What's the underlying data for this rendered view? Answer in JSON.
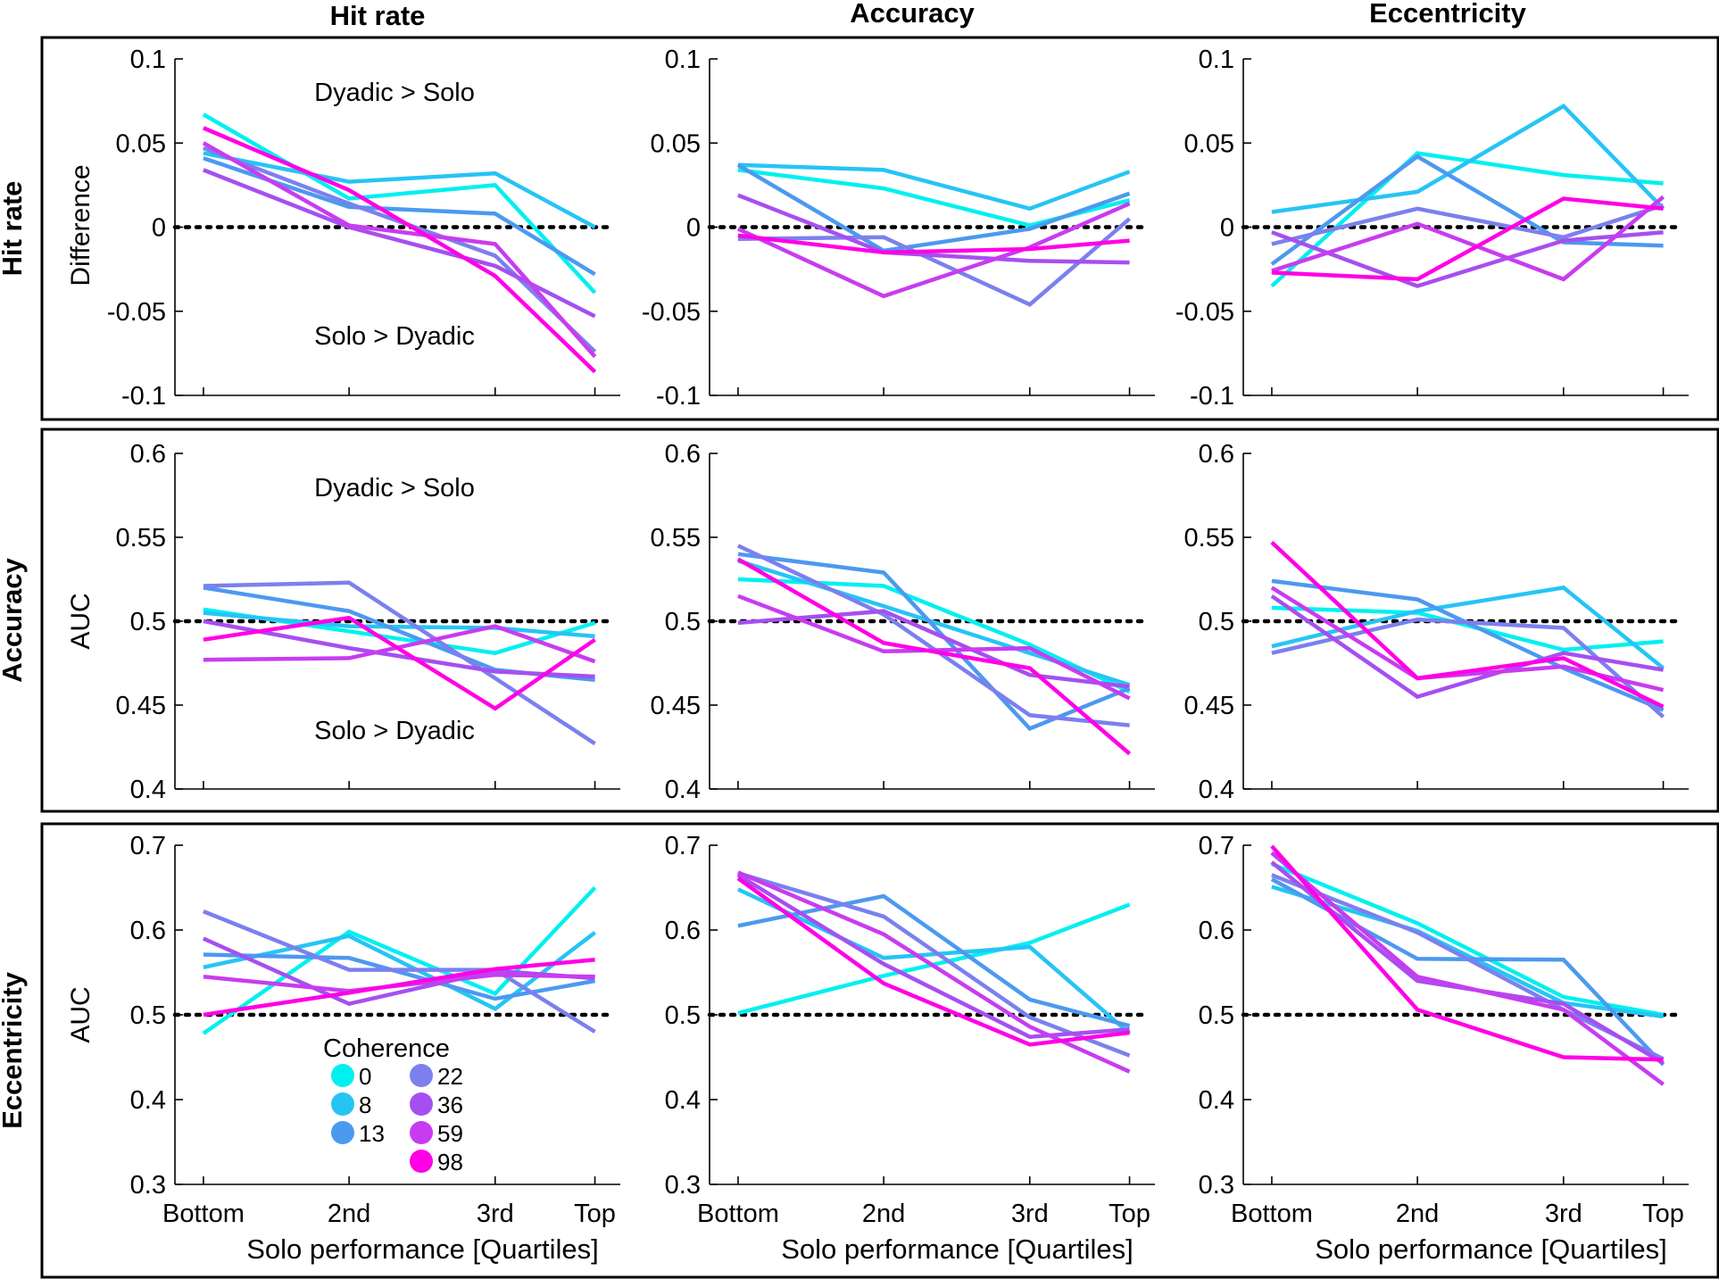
{
  "figure": {
    "column_titles": [
      "Hit rate",
      "Accuracy",
      "Eccentricity"
    ],
    "row_titles": [
      "Hit rate",
      "Accuracy",
      "Eccentricity"
    ]
  },
  "legend": {
    "title": "Coherence",
    "items": [
      {
        "label": "0",
        "color": "#00f0f0"
      },
      {
        "label": "8",
        "color": "#26c4f5"
      },
      {
        "label": "13",
        "color": "#4c99f0"
      },
      {
        "label": "22",
        "color": "#7b80ee"
      },
      {
        "label": "36",
        "color": "#a64ff0"
      },
      {
        "label": "59",
        "color": "#c83cf0"
      },
      {
        "label": "98",
        "color": "#ff00e6"
      }
    ]
  },
  "chart_data": [
    {
      "type": "line",
      "row": 0,
      "col": 0,
      "categories": [
        "Bottom",
        "2nd",
        "3rd",
        "Top"
      ],
      "ylabel": "Difference",
      "xlabel": "",
      "ylim": [
        -0.1,
        0.1
      ],
      "yticks": [
        "0.1",
        "0.05",
        "0",
        "-0.05",
        "-0.1"
      ],
      "reference": 0,
      "annotations": [
        "Dyadic > Solo",
        "Solo > Dyadic"
      ],
      "series": [
        {
          "values": [
            0.067,
            0.017,
            0.025,
            -0.039
          ]
        },
        {
          "values": [
            0.044,
            0.027,
            0.032,
            0.0
          ]
        },
        {
          "values": [
            0.041,
            0.012,
            0.008,
            -0.028
          ]
        },
        {
          "values": [
            0.047,
            0.014,
            -0.017,
            -0.074
          ]
        },
        {
          "values": [
            0.034,
            0.0,
            -0.023,
            -0.053
          ]
        },
        {
          "values": [
            0.05,
            0.001,
            -0.01,
            -0.077
          ]
        },
        {
          "values": [
            0.059,
            0.022,
            -0.029,
            -0.086
          ]
        }
      ]
    },
    {
      "type": "line",
      "row": 0,
      "col": 1,
      "categories": [
        "Bottom",
        "2nd",
        "3rd",
        "Top"
      ],
      "ylabel": "",
      "xlabel": "",
      "ylim": [
        -0.1,
        0.1
      ],
      "yticks": [
        "0.1",
        "0.05",
        "0",
        "-0.05",
        "-0.1"
      ],
      "reference": 0,
      "series": [
        {
          "values": [
            0.034,
            0.023,
            0.001,
            0.016
          ]
        },
        {
          "values": [
            0.037,
            0.034,
            0.011,
            0.033
          ]
        },
        {
          "values": [
            0.037,
            -0.014,
            -0.001,
            0.02
          ]
        },
        {
          "values": [
            -0.007,
            -0.006,
            -0.046,
            0.005
          ]
        },
        {
          "values": [
            0.019,
            -0.015,
            -0.02,
            -0.021
          ]
        },
        {
          "values": [
            -0.001,
            -0.041,
            -0.012,
            0.014
          ]
        },
        {
          "values": [
            -0.005,
            -0.015,
            -0.013,
            -0.008
          ]
        }
      ]
    },
    {
      "type": "line",
      "row": 0,
      "col": 2,
      "categories": [
        "Bottom",
        "2nd",
        "3rd",
        "Top"
      ],
      "ylabel": "",
      "xlabel": "",
      "ylim": [
        -0.1,
        0.1
      ],
      "yticks": [
        "0.1",
        "0.05",
        "0",
        "-0.05",
        "-0.1"
      ],
      "reference": 0,
      "series": [
        {
          "values": [
            -0.035,
            0.044,
            0.031,
            0.026
          ]
        },
        {
          "values": [
            0.009,
            0.021,
            0.072,
            0.011
          ]
        },
        {
          "values": [
            -0.022,
            0.042,
            -0.009,
            -0.011
          ]
        },
        {
          "values": [
            -0.01,
            0.011,
            -0.006,
            0.013
          ]
        },
        {
          "values": [
            -0.003,
            -0.035,
            -0.008,
            -0.003
          ]
        },
        {
          "values": [
            -0.026,
            0.002,
            -0.031,
            0.018
          ]
        },
        {
          "values": [
            -0.027,
            -0.031,
            0.017,
            0.011
          ]
        }
      ]
    },
    {
      "type": "line",
      "row": 1,
      "col": 0,
      "categories": [
        "Bottom",
        "2nd",
        "3rd",
        "Top"
      ],
      "ylabel": "AUC",
      "xlabel": "",
      "ylim": [
        0.4,
        0.6
      ],
      "yticks": [
        "0.6",
        "0.55",
        "0.5",
        "0.45",
        "0.4"
      ],
      "reference": 0.5,
      "annotations": [
        "Dyadic > Solo",
        "Solo > Dyadic"
      ],
      "series": [
        {
          "values": [
            0.507,
            0.494,
            0.481,
            0.499
          ]
        },
        {
          "values": [
            0.505,
            0.497,
            0.496,
            0.491
          ]
        },
        {
          "values": [
            0.52,
            0.506,
            0.471,
            0.465
          ]
        },
        {
          "values": [
            0.521,
            0.523,
            0.466,
            0.427
          ]
        },
        {
          "values": [
            0.5,
            0.484,
            0.47,
            0.467
          ]
        },
        {
          "values": [
            0.477,
            0.478,
            0.497,
            0.476
          ]
        },
        {
          "values": [
            0.489,
            0.502,
            0.448,
            0.489
          ]
        }
      ]
    },
    {
      "type": "line",
      "row": 1,
      "col": 1,
      "categories": [
        "Bottom",
        "2nd",
        "3rd",
        "Top"
      ],
      "ylabel": "",
      "xlabel": "",
      "ylim": [
        0.4,
        0.6
      ],
      "yticks": [
        "0.6",
        "0.55",
        "0.5",
        "0.45",
        "0.4"
      ],
      "reference": 0.5,
      "series": [
        {
          "values": [
            0.525,
            0.521,
            0.486,
            0.458
          ]
        },
        {
          "values": [
            0.536,
            0.509,
            0.481,
            0.462
          ]
        },
        {
          "values": [
            0.54,
            0.529,
            0.436,
            0.46
          ]
        },
        {
          "values": [
            0.545,
            0.504,
            0.444,
            0.438
          ]
        },
        {
          "values": [
            0.499,
            0.506,
            0.468,
            0.461
          ]
        },
        {
          "values": [
            0.515,
            0.482,
            0.484,
            0.454
          ]
        },
        {
          "values": [
            0.537,
            0.487,
            0.472,
            0.421
          ]
        }
      ]
    },
    {
      "type": "line",
      "row": 1,
      "col": 2,
      "categories": [
        "Bottom",
        "2nd",
        "3rd",
        "Top"
      ],
      "ylabel": "",
      "xlabel": "",
      "ylim": [
        0.4,
        0.6
      ],
      "yticks": [
        "0.6",
        "0.55",
        "0.5",
        "0.45",
        "0.4"
      ],
      "reference": 0.5,
      "series": [
        {
          "values": [
            0.508,
            0.505,
            0.483,
            0.488
          ]
        },
        {
          "values": [
            0.485,
            0.506,
            0.52,
            0.472
          ]
        },
        {
          "values": [
            0.524,
            0.513,
            0.472,
            0.447
          ]
        },
        {
          "values": [
            0.481,
            0.501,
            0.496,
            0.443
          ]
        },
        {
          "values": [
            0.515,
            0.455,
            0.481,
            0.471
          ]
        },
        {
          "values": [
            0.52,
            0.466,
            0.473,
            0.459
          ]
        },
        {
          "values": [
            0.547,
            0.466,
            0.478,
            0.449
          ]
        }
      ]
    },
    {
      "type": "line",
      "row": 2,
      "col": 0,
      "categories": [
        "Bottom",
        "2nd",
        "3rd",
        "Top"
      ],
      "ylabel": "AUC",
      "xlabel": "Solo performance [Quartiles]",
      "ylim": [
        0.3,
        0.7
      ],
      "yticks": [
        "0.7",
        "0.6",
        "0.5",
        "0.4",
        "0.3"
      ],
      "reference": 0.5,
      "series": [
        {
          "values": [
            0.478,
            0.598,
            0.525,
            0.65
          ]
        },
        {
          "values": [
            0.556,
            0.593,
            0.507,
            0.597
          ]
        },
        {
          "values": [
            0.571,
            0.567,
            0.519,
            0.54
          ]
        },
        {
          "values": [
            0.622,
            0.553,
            0.553,
            0.48
          ]
        },
        {
          "values": [
            0.59,
            0.513,
            0.552,
            0.543
          ]
        },
        {
          "values": [
            0.545,
            0.528,
            0.547,
            0.545
          ]
        },
        {
          "values": [
            0.5,
            0.526,
            0.554,
            0.565
          ]
        }
      ]
    },
    {
      "type": "line",
      "row": 2,
      "col": 1,
      "categories": [
        "Bottom",
        "2nd",
        "3rd",
        "Top"
      ],
      "ylabel": "",
      "xlabel": "Solo performance [Quartiles]",
      "ylim": [
        0.3,
        0.7
      ],
      "yticks": [
        "0.7",
        "0.6",
        "0.5",
        "0.4",
        "0.3"
      ],
      "reference": 0.5,
      "series": [
        {
          "values": [
            0.502,
            0.546,
            0.585,
            0.63
          ]
        },
        {
          "values": [
            0.648,
            0.567,
            0.58,
            0.478
          ]
        },
        {
          "values": [
            0.605,
            0.64,
            0.518,
            0.487
          ]
        },
        {
          "values": [
            0.667,
            0.616,
            0.497,
            0.452
          ]
        },
        {
          "values": [
            0.665,
            0.56,
            0.474,
            0.483
          ]
        },
        {
          "values": [
            0.668,
            0.595,
            0.486,
            0.433
          ]
        },
        {
          "values": [
            0.661,
            0.537,
            0.465,
            0.479
          ]
        }
      ]
    },
    {
      "type": "line",
      "row": 2,
      "col": 2,
      "categories": [
        "Bottom",
        "2nd",
        "3rd",
        "Top"
      ],
      "ylabel": "",
      "xlabel": "Solo performance [Quartiles]",
      "ylim": [
        0.3,
        0.7
      ],
      "yticks": [
        "0.7",
        "0.6",
        "0.5",
        "0.4",
        "0.3"
      ],
      "reference": 0.5,
      "series": [
        {
          "values": [
            0.678,
            0.608,
            0.521,
            0.5
          ]
        },
        {
          "values": [
            0.651,
            0.599,
            0.514,
            0.498
          ]
        },
        {
          "values": [
            0.66,
            0.566,
            0.565,
            0.441
          ]
        },
        {
          "values": [
            0.665,
            0.597,
            0.506,
            0.448
          ]
        },
        {
          "values": [
            0.68,
            0.54,
            0.513,
            0.443
          ]
        },
        {
          "values": [
            0.691,
            0.545,
            0.506,
            0.418
          ]
        },
        {
          "values": [
            0.699,
            0.506,
            0.45,
            0.447
          ]
        }
      ]
    }
  ]
}
